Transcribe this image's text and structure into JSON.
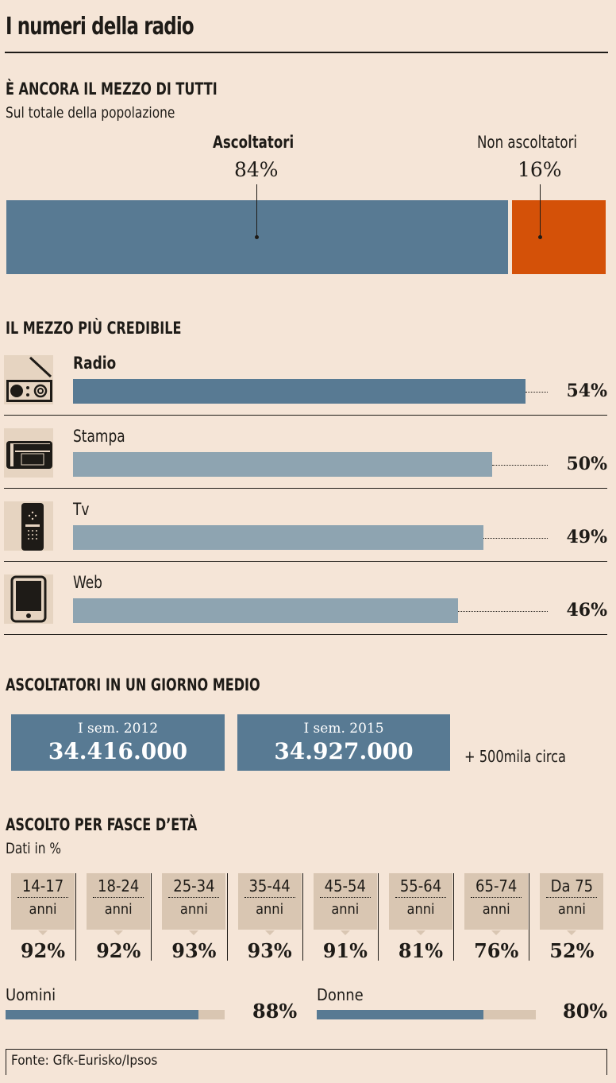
{
  "title": "I numeri della radio",
  "s1": {
    "heading": "È ANCORA IL MEZZO DI TUTTI",
    "subtitle": "Sul totale della popolazione",
    "listeners_label": "Ascoltatori",
    "listeners_value": "84%",
    "non_label": "Non ascoltatori",
    "non_value": "16%",
    "colors": {
      "listeners": "#587a93",
      "non": "#d45108"
    }
  },
  "s2": {
    "heading": "IL MEZZO PIÙ CREDIBILE",
    "items": [
      {
        "label": "Radio",
        "value": 54,
        "value_label": "54%"
      },
      {
        "label": "Stampa",
        "value": 50,
        "value_label": "50%"
      },
      {
        "label": "Tv",
        "value": 49,
        "value_label": "49%"
      },
      {
        "label": "Web",
        "value": 46,
        "value_label": "46%"
      }
    ]
  },
  "s3": {
    "heading": "ASCOLTATORI IN UN GIORNO MEDIO",
    "boxes": [
      {
        "label": "I sem. 2012",
        "value": "34.416.000"
      },
      {
        "label": "I sem. 2015",
        "value": "34.927.000"
      }
    ],
    "delta": "+ 500mila circa"
  },
  "s4": {
    "heading": "ASCOLTO PER FASCE D’ETÀ",
    "subtitle": "Dati in %",
    "unit": "anni",
    "ages": [
      {
        "range": "14-17",
        "unit": "anni",
        "value": "92%"
      },
      {
        "range": "18-24",
        "unit": "anni",
        "value": "92%"
      },
      {
        "range": "25-34",
        "unit": "anni",
        "value": "93%"
      },
      {
        "range": "35-44",
        "unit": "anni",
        "value": "93%"
      },
      {
        "range": "45-54",
        "unit": "anni",
        "value": "91%"
      },
      {
        "range": "55-64",
        "unit": "anni",
        "value": "81%"
      },
      {
        "range": "65-74",
        "unit": "anni",
        "value": "76%"
      },
      {
        "range": "Da 75",
        "unit": "anni",
        "value": "52%"
      }
    ],
    "gender": [
      {
        "label": "Uomini",
        "value": 88,
        "value_label": "88%"
      },
      {
        "label": "Donne",
        "value": 80,
        "value_label": "80%"
      }
    ]
  },
  "source": "Fonte: Gfk-Eurisko/Ipsos",
  "chart_data": [
    {
      "type": "bar",
      "title": "È ANCORA IL MEZZO DI TUTTI",
      "subtitle": "Sul totale della popolazione",
      "categories": [
        "Ascoltatori",
        "Non ascoltatori"
      ],
      "values": [
        84,
        16
      ],
      "unit": "%"
    },
    {
      "type": "bar",
      "title": "IL MEZZO PIÙ CREDIBILE",
      "categories": [
        "Radio",
        "Stampa",
        "Tv",
        "Web"
      ],
      "values": [
        54,
        50,
        49,
        46
      ],
      "unit": "%"
    },
    {
      "type": "table",
      "title": "ASCOLTATORI IN UN GIORNO MEDIO",
      "categories": [
        "I sem. 2012",
        "I sem. 2015"
      ],
      "values": [
        34416000,
        34927000
      ]
    },
    {
      "type": "table",
      "title": "ASCOLTO PER FASCE D’ETÀ",
      "categories": [
        "14-17",
        "18-24",
        "25-34",
        "35-44",
        "45-54",
        "55-64",
        "65-74",
        "Da 75"
      ],
      "values": [
        92,
        92,
        93,
        93,
        91,
        81,
        76,
        52
      ],
      "unit": "%"
    },
    {
      "type": "bar",
      "categories": [
        "Uomini",
        "Donne"
      ],
      "values": [
        88,
        80
      ],
      "unit": "%"
    }
  ]
}
